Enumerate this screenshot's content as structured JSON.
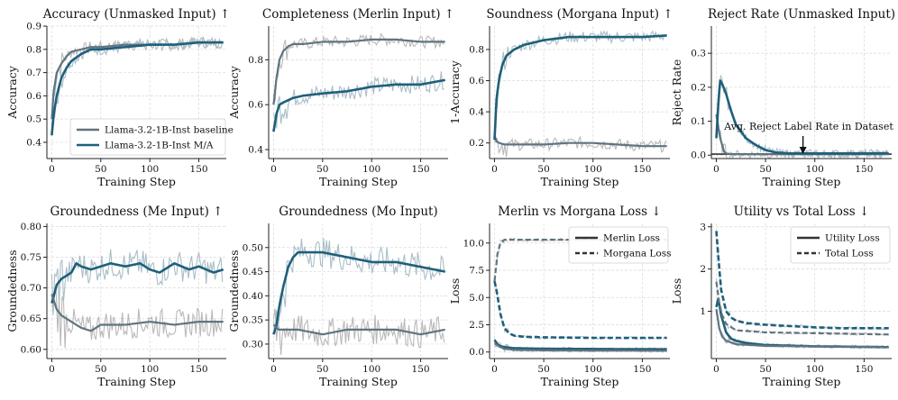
{
  "colors": {
    "baseline": "#5f7480",
    "ma": "#1f5f7a",
    "raw_light": "#a9bec8",
    "raw_grey": "#b9b9b9"
  },
  "chart_data": [
    {
      "type": "line",
      "title": "Accuracy (Unmasked Input) ↑",
      "xlabel": "Training Step",
      "ylabel": "Accuracy",
      "xlim": [
        -5,
        178
      ],
      "ylim": [
        0.33,
        0.9
      ],
      "xticks": [
        0,
        50,
        100,
        150
      ],
      "yticks": [
        0.4,
        0.5,
        0.6,
        0.7,
        0.8,
        0.9
      ],
      "ytick_labels": [
        "0.4",
        "0.5",
        "0.6",
        "0.7",
        "0.8",
        "0.9"
      ],
      "grid": true,
      "legend_position": "lower-right",
      "series": [
        {
          "name": "Llama-3.2-1B-Inst baseline",
          "style": "baseline",
          "x": [
            0,
            2,
            5,
            10,
            15,
            20,
            30,
            40,
            50,
            75,
            100,
            125,
            150,
            175
          ],
          "y": [
            0.5,
            0.62,
            0.7,
            0.74,
            0.77,
            0.79,
            0.8,
            0.81,
            0.81,
            0.82,
            0.82,
            0.82,
            0.83,
            0.83
          ]
        },
        {
          "name": "Llama-3.2-1B-Inst M/A",
          "style": "ma",
          "x": [
            0,
            2,
            5,
            10,
            15,
            20,
            30,
            40,
            50,
            75,
            100,
            125,
            150,
            175
          ],
          "y": [
            0.43,
            0.52,
            0.6,
            0.68,
            0.72,
            0.75,
            0.78,
            0.8,
            0.8,
            0.81,
            0.82,
            0.82,
            0.83,
            0.83
          ]
        }
      ]
    },
    {
      "type": "line",
      "title": "Completeness (Merlin Input) ↑",
      "xlabel": "Training Step",
      "ylabel": "Accuracy",
      "xlim": [
        -5,
        178
      ],
      "ylim": [
        0.36,
        0.95
      ],
      "xticks": [
        0,
        50,
        100,
        150
      ],
      "yticks": [
        0.4,
        0.6,
        0.8
      ],
      "ytick_labels": [
        "0.4",
        "0.6",
        "0.8"
      ],
      "grid": true,
      "series": [
        {
          "style": "baseline",
          "x": [
            0,
            3,
            6,
            10,
            15,
            20,
            30,
            50,
            75,
            100,
            125,
            150,
            175
          ],
          "y": [
            0.6,
            0.72,
            0.8,
            0.84,
            0.86,
            0.87,
            0.87,
            0.88,
            0.88,
            0.89,
            0.89,
            0.88,
            0.88
          ]
        },
        {
          "style": "ma",
          "x": [
            0,
            3,
            6,
            10,
            15,
            20,
            30,
            50,
            75,
            100,
            125,
            150,
            175
          ],
          "y": [
            0.48,
            0.56,
            0.6,
            0.61,
            0.62,
            0.63,
            0.64,
            0.65,
            0.66,
            0.68,
            0.69,
            0.69,
            0.71
          ]
        }
      ]
    },
    {
      "type": "line",
      "title": "Soundness (Morgana Input) ↑",
      "xlabel": "Training Step",
      "ylabel": "1-Accuracy",
      "xlim": [
        -5,
        178
      ],
      "ylim": [
        0.1,
        0.95
      ],
      "xticks": [
        0,
        50,
        100,
        150
      ],
      "yticks": [
        0.2,
        0.4,
        0.6,
        0.8
      ],
      "ytick_labels": [
        "0.2",
        "0.4",
        "0.6",
        "0.8"
      ],
      "grid": true,
      "series": [
        {
          "style": "baseline",
          "x": [
            0,
            2,
            5,
            10,
            20,
            50,
            75,
            100,
            125,
            150,
            175
          ],
          "y": [
            0.25,
            0.21,
            0.2,
            0.19,
            0.19,
            0.19,
            0.2,
            0.2,
            0.19,
            0.18,
            0.18
          ]
        },
        {
          "style": "ma",
          "x": [
            0,
            2,
            5,
            8,
            12,
            20,
            30,
            50,
            75,
            100,
            125,
            150,
            175
          ],
          "y": [
            0.22,
            0.48,
            0.62,
            0.7,
            0.76,
            0.8,
            0.83,
            0.86,
            0.88,
            0.88,
            0.88,
            0.88,
            0.89
          ]
        }
      ]
    },
    {
      "type": "line",
      "title": "Reject Rate (Unmasked Input)",
      "xlabel": "Training Step",
      "ylabel": "Reject Rate",
      "xlim": [
        -5,
        178
      ],
      "ylim": [
        -0.01,
        0.38
      ],
      "xticks": [
        0,
        50,
        100,
        150
      ],
      "yticks": [
        0,
        0.1,
        0.2,
        0.3
      ],
      "ytick_labels": [
        "0.0",
        "0.1",
        "0.2",
        "0.3"
      ],
      "grid": true,
      "annotation": {
        "text": "Avg. Reject Label Rate in Dataset",
        "x": 88,
        "y": 0.003
      },
      "reference_line": 0.003,
      "series": [
        {
          "style": "baseline",
          "x": [
            0,
            2,
            4,
            6,
            8,
            10,
            15,
            175
          ],
          "y": [
            0.12,
            0.08,
            0.05,
            0.03,
            0.01,
            0.005,
            0.003,
            0.003
          ]
        },
        {
          "style": "ma",
          "x": [
            0,
            2,
            4,
            6,
            10,
            15,
            20,
            30,
            40,
            50,
            60,
            75,
            100,
            150,
            175
          ],
          "y": [
            0.05,
            0.15,
            0.22,
            0.21,
            0.18,
            0.13,
            0.09,
            0.05,
            0.03,
            0.015,
            0.008,
            0.005,
            0.005,
            0.005,
            0.006
          ]
        }
      ]
    },
    {
      "type": "line",
      "title": "Groundedness (Me Input) ↑",
      "xlabel": "Training Step",
      "ylabel": "Groundedness",
      "xlim": [
        -5,
        178
      ],
      "ylim": [
        0.585,
        0.805
      ],
      "xticks": [
        0,
        50,
        100,
        150
      ],
      "yticks": [
        0.6,
        0.65,
        0.7,
        0.75,
        0.8
      ],
      "ytick_labels": [
        "0.60",
        "0.65",
        "0.70",
        "0.75",
        "0.80"
      ],
      "grid": true,
      "series": [
        {
          "style": "ma",
          "x": [
            0,
            5,
            10,
            20,
            25,
            30,
            40,
            50,
            60,
            75,
            90,
            100,
            110,
            125,
            140,
            150,
            165,
            175
          ],
          "y": [
            0.675,
            0.705,
            0.715,
            0.725,
            0.74,
            0.735,
            0.73,
            0.735,
            0.74,
            0.735,
            0.74,
            0.73,
            0.725,
            0.74,
            0.73,
            0.735,
            0.725,
            0.73
          ]
        },
        {
          "style": "baseline",
          "x": [
            0,
            5,
            10,
            20,
            30,
            40,
            50,
            75,
            100,
            125,
            150,
            175
          ],
          "y": [
            0.69,
            0.665,
            0.655,
            0.645,
            0.635,
            0.63,
            0.64,
            0.64,
            0.645,
            0.64,
            0.645,
            0.645
          ]
        }
      ]
    },
    {
      "type": "line",
      "title": "Groundedness (Mo Input)",
      "xlabel": "Training Step",
      "ylabel": "Groundedness",
      "xlim": [
        -5,
        178
      ],
      "ylim": [
        0.27,
        0.55
      ],
      "xticks": [
        0,
        50,
        100,
        150
      ],
      "yticks": [
        0.3,
        0.35,
        0.4,
        0.45,
        0.5
      ],
      "ytick_labels": [
        "0.30",
        "0.35",
        "0.40",
        "0.45",
        "0.50"
      ],
      "grid": true,
      "series": [
        {
          "style": "ma",
          "x": [
            0,
            3,
            6,
            10,
            15,
            20,
            25,
            50,
            75,
            100,
            125,
            150,
            175
          ],
          "y": [
            0.32,
            0.34,
            0.38,
            0.42,
            0.46,
            0.48,
            0.49,
            0.49,
            0.48,
            0.47,
            0.47,
            0.46,
            0.45
          ]
        },
        {
          "style": "baseline",
          "x": [
            0,
            5,
            10,
            25,
            50,
            75,
            100,
            125,
            150,
            175
          ],
          "y": [
            0.34,
            0.33,
            0.33,
            0.33,
            0.32,
            0.33,
            0.33,
            0.33,
            0.32,
            0.33
          ]
        }
      ]
    },
    {
      "type": "line",
      "title": "Merlin vs Morgana Loss ↓",
      "xlabel": "Training Step",
      "ylabel": "Loss",
      "xlim": [
        -5,
        178
      ],
      "ylim": [
        -0.6,
        11.8
      ],
      "xticks": [
        0,
        50,
        100,
        150
      ],
      "yticks": [
        0,
        2.5,
        5,
        7.5,
        10
      ],
      "ytick_labels": [
        "0.0",
        "2.5",
        "5.0",
        "7.5",
        "10.0"
      ],
      "grid": true,
      "legend_position": "upper-right",
      "series": [
        {
          "name": "Merlin Loss",
          "dash": "solid",
          "style": "ma",
          "x": [
            0,
            3,
            6,
            10,
            20,
            50,
            100,
            175
          ],
          "y": [
            1.1,
            0.7,
            0.55,
            0.45,
            0.35,
            0.3,
            0.28,
            0.25
          ]
        },
        {
          "name": "",
          "dash": "solid",
          "style": "baseline",
          "x": [
            0,
            5,
            10,
            20,
            50,
            175
          ],
          "y": [
            0.8,
            0.5,
            0.3,
            0.2,
            0.15,
            0.12
          ]
        },
        {
          "name": "Morgana Loss",
          "dash": "dashed",
          "style": "ma",
          "x": [
            0,
            3,
            6,
            10,
            15,
            20,
            30,
            50,
            100,
            175
          ],
          "y": [
            6.5,
            5.2,
            3.5,
            2.2,
            1.7,
            1.5,
            1.4,
            1.35,
            1.3,
            1.3
          ]
        },
        {
          "name": "",
          "dash": "dashed",
          "style": "baseline",
          "x": [
            0,
            3,
            6,
            10,
            20,
            50,
            100,
            150,
            175
          ],
          "y": [
            6.5,
            9.0,
            10.0,
            10.3,
            10.3,
            10.3,
            10.3,
            10.3,
            10.3
          ]
        }
      ]
    },
    {
      "type": "line",
      "title": "Utility vs Total Loss ↓",
      "xlabel": "Training Step",
      "ylabel": "Loss",
      "xlim": [
        -5,
        178
      ],
      "ylim": [
        -0.12,
        3.08
      ],
      "xticks": [
        0,
        50,
        100,
        150
      ],
      "yticks": [
        1,
        2,
        3
      ],
      "ytick_labels": [
        "1",
        "2",
        "3"
      ],
      "grid": true,
      "legend_position": "upper-right",
      "series": [
        {
          "name": "Utility Loss",
          "dash": "solid",
          "style": "ma",
          "x": [
            0,
            2,
            5,
            10,
            15,
            20,
            30,
            50,
            100,
            175
          ],
          "y": [
            1.1,
            1.3,
            0.9,
            0.5,
            0.35,
            0.3,
            0.25,
            0.2,
            0.17,
            0.15
          ]
        },
        {
          "name": "",
          "dash": "solid",
          "style": "baseline",
          "x": [
            0,
            3,
            6,
            10,
            20,
            50,
            175
          ],
          "y": [
            1.05,
            0.6,
            0.4,
            0.3,
            0.22,
            0.18,
            0.15
          ]
        },
        {
          "name": "Total Loss",
          "dash": "dashed",
          "style": "ma",
          "x": [
            0,
            2,
            5,
            10,
            15,
            20,
            30,
            50,
            75,
            100,
            125,
            150,
            175
          ],
          "y": [
            2.9,
            2.3,
            1.5,
            1.0,
            0.85,
            0.78,
            0.72,
            0.68,
            0.65,
            0.62,
            0.6,
            0.6,
            0.6
          ]
        },
        {
          "name": "",
          "dash": "dashed",
          "style": "baseline",
          "x": [
            0,
            3,
            6,
            10,
            20,
            50,
            175
          ],
          "y": [
            1.7,
            1.2,
            0.9,
            0.7,
            0.55,
            0.5,
            0.45
          ]
        }
      ]
    }
  ]
}
